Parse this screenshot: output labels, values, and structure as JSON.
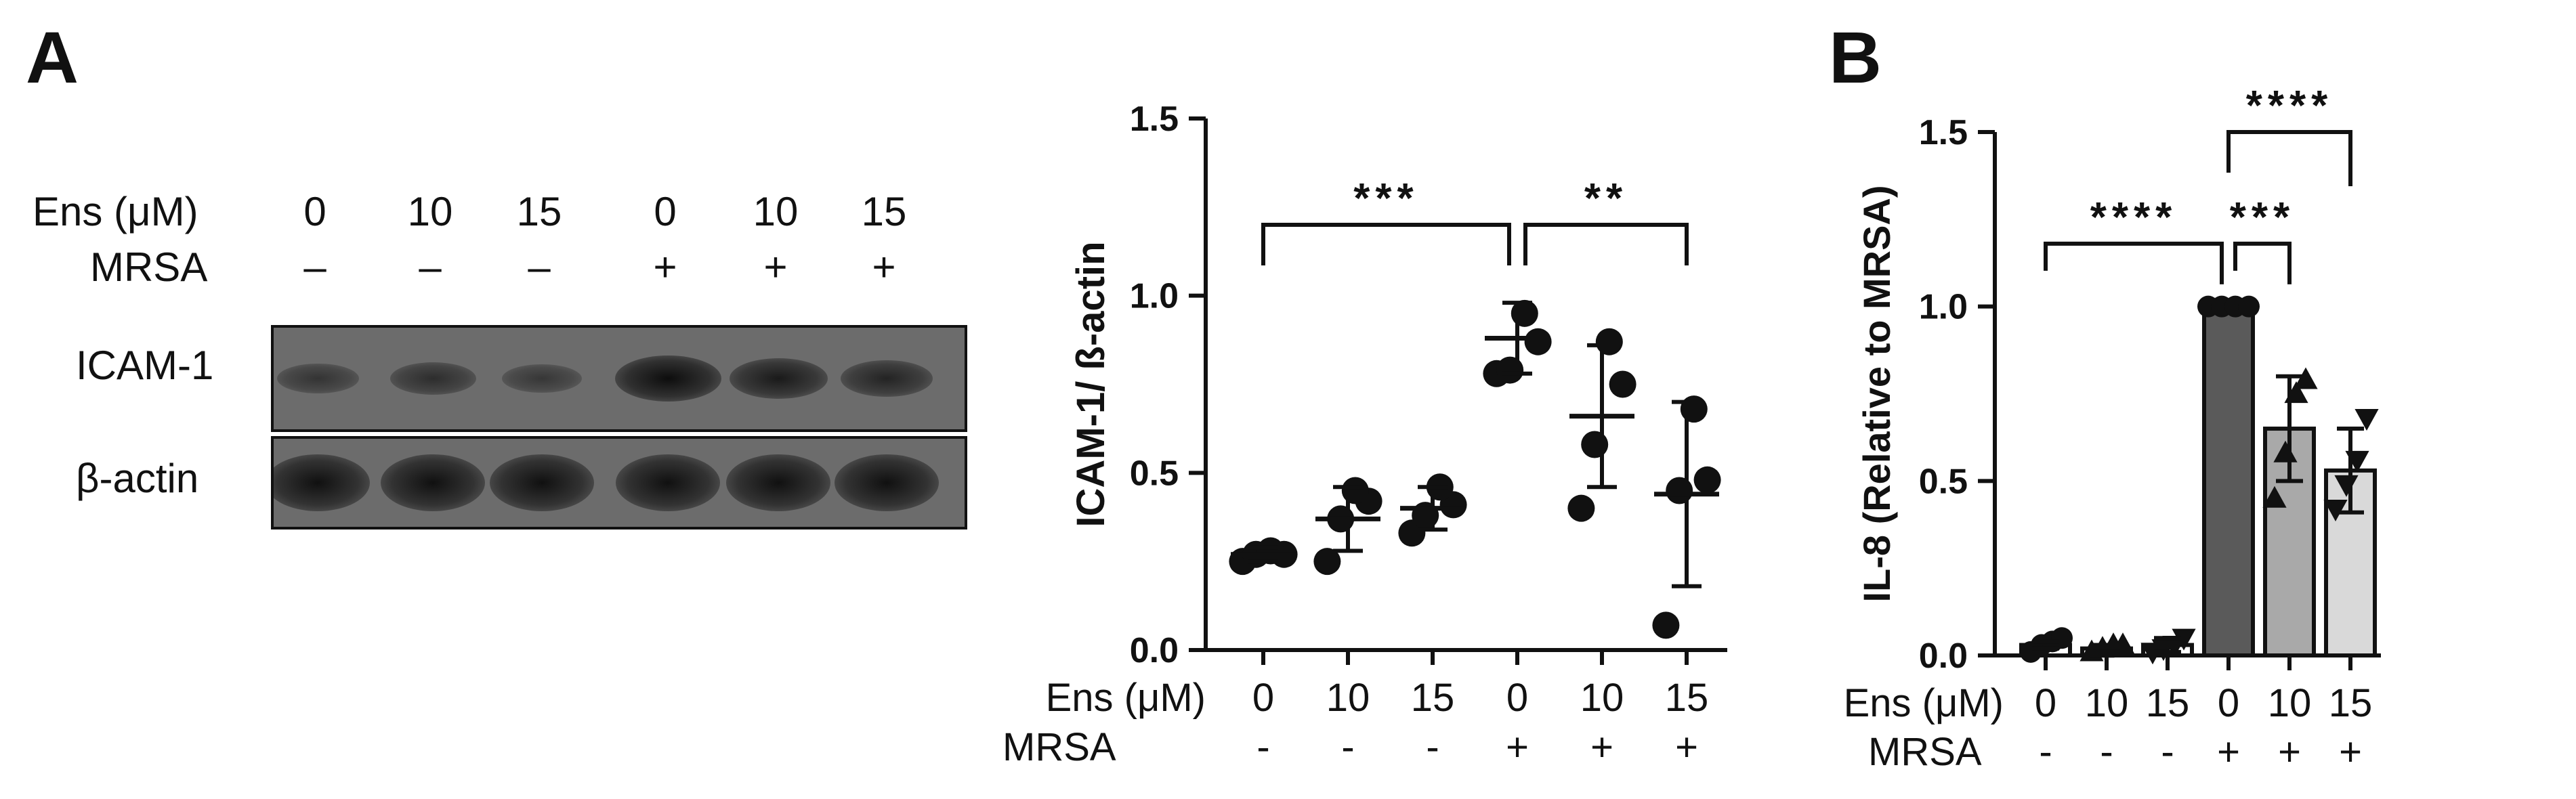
{
  "panel_a": {
    "letter": "A",
    "blot": {
      "ens_label": "Ens (μM)",
      "mrsa_label": "MRSA",
      "lanes": [
        {
          "ens": "0",
          "mrsa": "–"
        },
        {
          "ens": "10",
          "mrsa": "–"
        },
        {
          "ens": "15",
          "mrsa": "–"
        },
        {
          "ens": "0",
          "mrsa": "+"
        },
        {
          "ens": "10",
          "mrsa": "+"
        },
        {
          "ens": "15",
          "mrsa": "+"
        }
      ],
      "rows": [
        {
          "label": "ICAM-1",
          "band_intensity": [
            0.35,
            0.45,
            0.3,
            0.95,
            0.75,
            0.6
          ]
        },
        {
          "label": "β-actin",
          "band_intensity": [
            0.9,
            0.9,
            0.9,
            0.9,
            0.9,
            0.9
          ]
        }
      ]
    }
  },
  "panel_b": {
    "letter": "B"
  },
  "colors": {
    "ink": "#111111",
    "blot_bg": "#6c6c6c",
    "bar_mrsa0": "#5a5a5a",
    "bar_mrsa10": "#a9a9a9",
    "bar_mrsa15": "#d9d9d9"
  },
  "chart_data": [
    {
      "type": "scatter",
      "panel": "A",
      "title": "",
      "xlabel": "",
      "ylabel": "ICAM-1/ ß-actin",
      "ylim": [
        0,
        1.5
      ],
      "yticks": [
        "0.0",
        "0.5",
        "1.0",
        "1.5"
      ],
      "yticks_values": [
        0,
        0.5,
        1.0,
        1.5
      ],
      "row_labels": [
        "Ens (μM)",
        "MRSA"
      ],
      "categories": [
        {
          "ens": "0",
          "mrsa": "-"
        },
        {
          "ens": "10",
          "mrsa": "-"
        },
        {
          "ens": "15",
          "mrsa": "-"
        },
        {
          "ens": "0",
          "mrsa": "+"
        },
        {
          "ens": "10",
          "mrsa": "+"
        },
        {
          "ens": "15",
          "mrsa": "+"
        }
      ],
      "points": [
        [
          0.25,
          0.27,
          0.27,
          0.28
        ],
        [
          0.25,
          0.37,
          0.42,
          0.45
        ],
        [
          0.33,
          0.38,
          0.41,
          0.46
        ],
        [
          0.78,
          0.79,
          0.87,
          0.95
        ],
        [
          0.4,
          0.58,
          0.75,
          0.87
        ],
        [
          0.07,
          0.45,
          0.48,
          0.68
        ]
      ],
      "means": [
        0.27,
        0.37,
        0.4,
        0.88,
        0.66,
        0.44
      ],
      "sd": [
        0.02,
        0.09,
        0.06,
        0.1,
        0.2,
        0.26
      ],
      "significance": [
        {
          "from": 0,
          "to": 3,
          "label": "***",
          "y": 1.2
        },
        {
          "from": 3,
          "to": 5,
          "label": "**",
          "y": 1.2
        }
      ]
    },
    {
      "type": "bar",
      "panel": "B",
      "title": "",
      "xlabel": "",
      "ylabel": "IL-8 (Relative to MRSA)",
      "ylim": [
        0,
        1.5
      ],
      "yticks": [
        "0.0",
        "0.5",
        "1.0",
        "1.5"
      ],
      "yticks_values": [
        0,
        0.5,
        1.0,
        1.5
      ],
      "row_labels": [
        "Ens (μM)",
        "MRSA"
      ],
      "categories": [
        {
          "ens": "0",
          "mrsa": "-"
        },
        {
          "ens": "10",
          "mrsa": "-"
        },
        {
          "ens": "15",
          "mrsa": "-"
        },
        {
          "ens": "0",
          "mrsa": "+"
        },
        {
          "ens": "10",
          "mrsa": "+"
        },
        {
          "ens": "15",
          "mrsa": "+"
        }
      ],
      "values": [
        0.03,
        0.02,
        0.03,
        1.0,
        0.65,
        0.53
      ],
      "sd": [
        0.01,
        0.01,
        0.02,
        0.0,
        0.15,
        0.12
      ],
      "bar_colors": [
        "#ffffff",
        "#ffffff",
        "#ffffff",
        "#5a5a5a",
        "#a9a9a9",
        "#d9d9d9"
      ],
      "markers": [
        "circle",
        "triangle-up",
        "triangle-down",
        "circle",
        "triangle-up",
        "triangle-down"
      ],
      "points": [
        [
          0.01,
          0.03,
          0.04,
          0.05
        ],
        [
          0.01,
          0.02,
          0.03,
          0.03
        ],
        [
          0.01,
          0.02,
          0.03,
          0.05
        ],
        [
          1.0,
          1.0,
          1.0,
          1.0
        ],
        [
          0.45,
          0.58,
          0.75,
          0.79
        ],
        [
          0.42,
          0.49,
          0.56,
          0.68
        ]
      ],
      "significance": [
        {
          "from": 0,
          "to": 3,
          "label": "****",
          "y": 1.18
        },
        {
          "from": 3,
          "to": 4,
          "label": "***",
          "y": 1.18
        },
        {
          "from": 3,
          "to": 5,
          "label": "****",
          "y": 1.5
        }
      ]
    }
  ]
}
